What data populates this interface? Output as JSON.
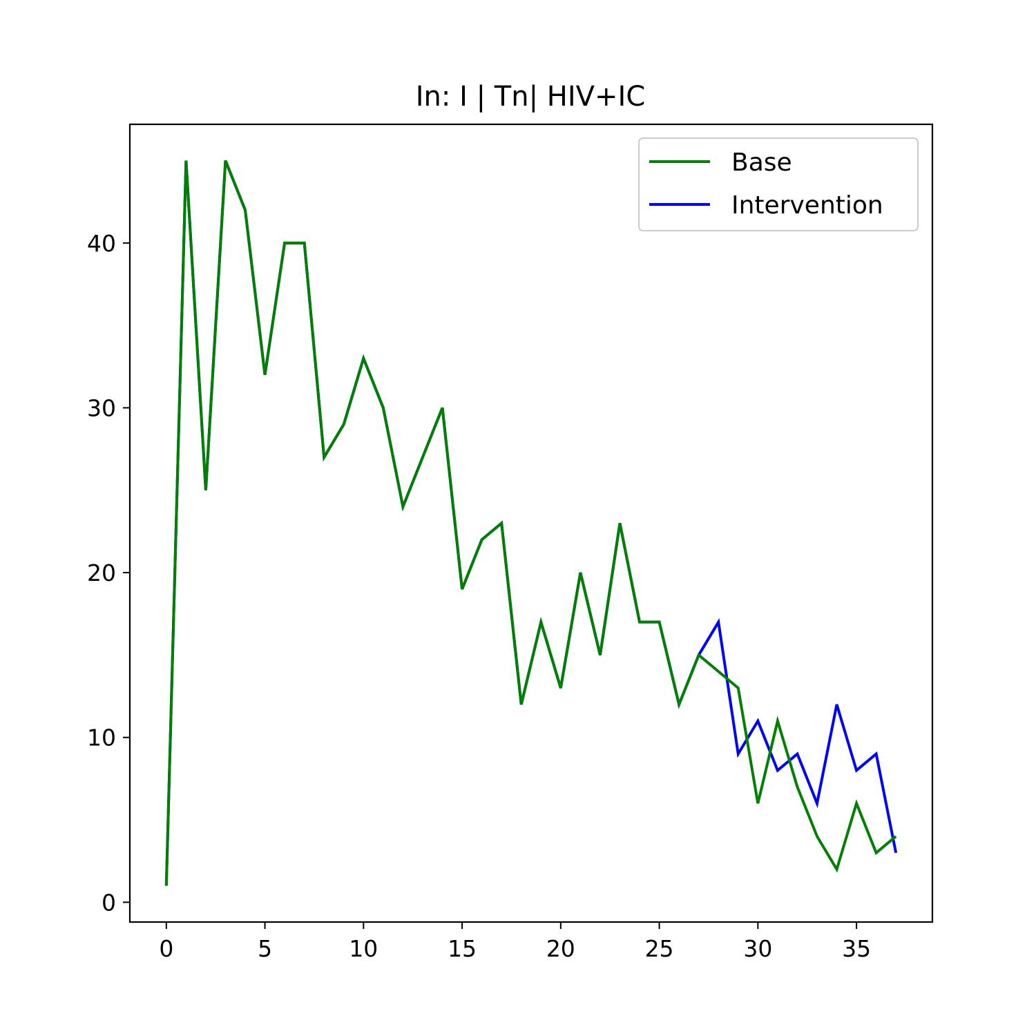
{
  "chart_data": {
    "type": "line",
    "title": "In: I | Tn| HIV+IC",
    "xlabel": "",
    "ylabel": "",
    "xlim": [
      -1.85,
      38.85
    ],
    "ylim": [
      -1.2,
      47.2
    ],
    "xticks": [
      0,
      5,
      10,
      15,
      20,
      25,
      30,
      35
    ],
    "yticks": [
      0,
      10,
      20,
      30,
      40
    ],
    "grid": false,
    "legend_position": "upper right",
    "series": [
      {
        "name": "Intervention",
        "color": "#0000ff",
        "x": [
          0,
          1,
          2,
          3,
          4,
          5,
          6,
          7,
          8,
          9,
          10,
          11,
          12,
          13,
          14,
          15,
          16,
          17,
          18,
          19,
          20,
          21,
          22,
          23,
          24,
          25,
          26,
          27,
          28,
          29,
          30,
          31,
          32,
          33,
          34,
          35,
          36,
          37
        ],
        "values": [
          1,
          45,
          25,
          45,
          42,
          32,
          40,
          40,
          27,
          29,
          33,
          30,
          24,
          27,
          30,
          19,
          22,
          23,
          12,
          17,
          13,
          20,
          15,
          23,
          17,
          17,
          12,
          15,
          17,
          9,
          11,
          8,
          9,
          6,
          12,
          8,
          9,
          3
        ]
      },
      {
        "name": "Base",
        "color": "#008000",
        "x": [
          0,
          1,
          2,
          3,
          4,
          5,
          6,
          7,
          8,
          9,
          10,
          11,
          12,
          13,
          14,
          15,
          16,
          17,
          18,
          19,
          20,
          21,
          22,
          23,
          24,
          25,
          26,
          27,
          28,
          29,
          30,
          31,
          32,
          33,
          34,
          35,
          36,
          37
        ],
        "values": [
          1,
          45,
          25,
          45,
          42,
          32,
          40,
          40,
          27,
          29,
          33,
          30,
          24,
          27,
          30,
          19,
          22,
          23,
          12,
          17,
          13,
          20,
          15,
          23,
          17,
          17,
          12,
          15,
          14,
          13,
          6,
          11,
          7,
          4,
          2,
          6,
          3,
          4
        ]
      }
    ],
    "legend": [
      {
        "name": "Base",
        "color": "#008000"
      },
      {
        "name": "Intervention",
        "color": "#0000ff"
      }
    ]
  }
}
